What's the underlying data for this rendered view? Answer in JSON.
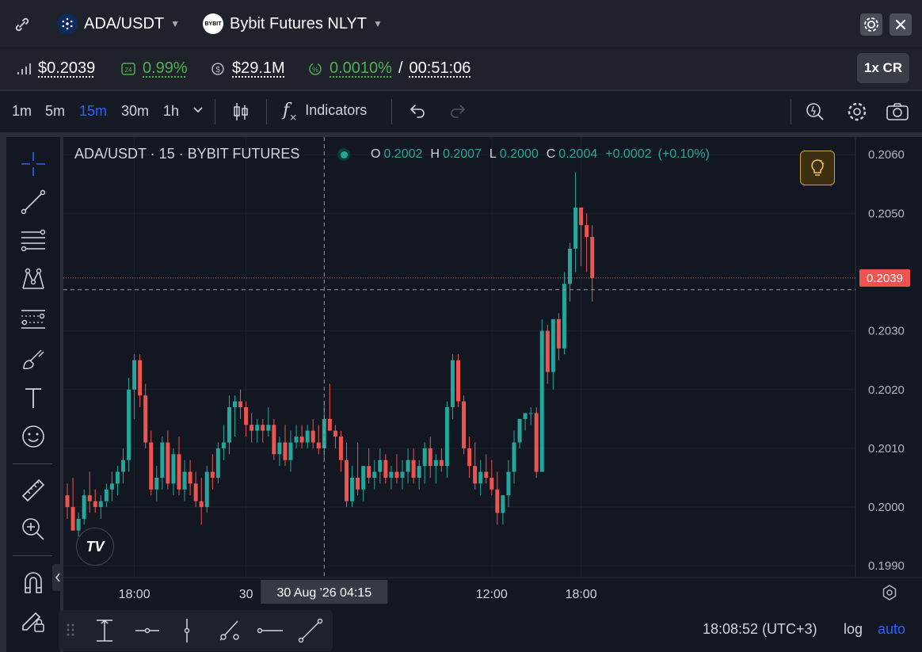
{
  "header": {
    "pair": "ADA/USDT",
    "exchange": "Bybit Futures NLYT",
    "exchange_logo_text": "BYBIT"
  },
  "stats": {
    "price": "$0.2039",
    "change_24h": "0.99%",
    "volume": "$29.1M",
    "funding": "0.0010%",
    "funding_sep": "/",
    "countdown": "00:51:06",
    "leverage_button": "1x CR"
  },
  "toolbar": {
    "timeframes": [
      "1m",
      "5m",
      "15m",
      "30m",
      "1h"
    ],
    "active_timeframe": "15m",
    "indicators_label": "Indicators",
    "indicators_fx": "f"
  },
  "legend": {
    "symbol": "ADA/USDT · 15 · BYBIT FUTURES",
    "o_label": "O",
    "o": "0.2002",
    "h_label": "H",
    "h": "0.2007",
    "l_label": "L",
    "l": "0.2000",
    "c_label": "C",
    "c": "0.2004",
    "change": "+0.0002",
    "change_pct": "(+0.10%)"
  },
  "footer": {
    "time": "18:08:52 (UTC+3)",
    "log": "log",
    "auto": "auto",
    "tv_logo": "TV"
  },
  "colors": {
    "up": "#26a69a",
    "down": "#ef5350",
    "accent": "#2962ff",
    "background": "#131722"
  },
  "chart_data": {
    "type": "candlestick",
    "ylim": [
      0.1988,
      0.2063
    ],
    "yticks": [
      "0.2060",
      "0.2050",
      "0.2030",
      "0.2020",
      "0.2010",
      "0.2000",
      "0.1990"
    ],
    "xlabels": [
      {
        "index": 12,
        "label": "18:00"
      },
      {
        "index": 32,
        "label": "30"
      },
      {
        "index": 76,
        "label": "12:00"
      },
      {
        "index": 92,
        "label": "18:00"
      }
    ],
    "crosshair": {
      "index": 46,
      "label": "30 Aug '26   04:15",
      "price": 0.2037
    },
    "last_price": {
      "value": 0.2039,
      "label": "0.2039"
    },
    "candles": [
      [
        0.2002,
        0.2004,
        0.1998,
        0.2
      ],
      [
        0.2,
        0.2005,
        0.1996,
        0.1996
      ],
      [
        0.1996,
        0.1999,
        0.1995,
        0.1998
      ],
      [
        0.1998,
        0.2003,
        0.1997,
        0.2002
      ],
      [
        0.2002,
        0.2006,
        0.1999,
        0.2001
      ],
      [
        0.2001,
        0.2003,
        0.1999,
        0.2
      ],
      [
        0.2,
        0.2002,
        0.1998,
        0.2001
      ],
      [
        0.2001,
        0.2004,
        0.2,
        0.2003
      ],
      [
        0.2003,
        0.2006,
        0.2001,
        0.2004
      ],
      [
        0.2004,
        0.2007,
        0.2002,
        0.2006
      ],
      [
        0.2006,
        0.201,
        0.2004,
        0.2008
      ],
      [
        0.2008,
        0.2022,
        0.2006,
        0.202
      ],
      [
        0.202,
        0.2026,
        0.2015,
        0.2025
      ],
      [
        0.2025,
        0.2026,
        0.2017,
        0.2019
      ],
      [
        0.2019,
        0.2021,
        0.201,
        0.2011
      ],
      [
        0.2011,
        0.2013,
        0.2002,
        0.2003
      ],
      [
        0.2003,
        0.2007,
        0.2001,
        0.2005
      ],
      [
        0.2005,
        0.2012,
        0.2003,
        0.2011
      ],
      [
        0.2011,
        0.2013,
        0.2003,
        0.2004
      ],
      [
        0.2004,
        0.201,
        0.2002,
        0.2009
      ],
      [
        0.2009,
        0.2012,
        0.2002,
        0.2003
      ],
      [
        0.2003,
        0.2008,
        0.2001,
        0.2006
      ],
      [
        0.2006,
        0.2008,
        0.2002,
        0.2004
      ],
      [
        0.2004,
        0.2006,
        0.2,
        0.2001
      ],
      [
        0.2001,
        0.2005,
        0.1997,
        0.2
      ],
      [
        0.2,
        0.2007,
        0.1999,
        0.2006
      ],
      [
        0.2006,
        0.2009,
        0.2003,
        0.2005
      ],
      [
        0.2005,
        0.2011,
        0.2004,
        0.201
      ],
      [
        0.201,
        0.2014,
        0.2008,
        0.2011
      ],
      [
        0.2011,
        0.2019,
        0.2009,
        0.2017
      ],
      [
        0.2017,
        0.2019,
        0.2012,
        0.2018
      ],
      [
        0.2018,
        0.202,
        0.2015,
        0.2017
      ],
      [
        0.2017,
        0.2018,
        0.2012,
        0.2014
      ],
      [
        0.2014,
        0.2016,
        0.2011,
        0.2013
      ],
      [
        0.2013,
        0.2015,
        0.2011,
        0.2014
      ],
      [
        0.2014,
        0.2015,
        0.2011,
        0.2013
      ],
      [
        0.2013,
        0.2017,
        0.2012,
        0.2014
      ],
      [
        0.2014,
        0.2015,
        0.2008,
        0.2009
      ],
      [
        0.2009,
        0.2012,
        0.2007,
        0.2011
      ],
      [
        0.2011,
        0.2014,
        0.2007,
        0.2008
      ],
      [
        0.2008,
        0.2013,
        0.2006,
        0.2011
      ],
      [
        0.2011,
        0.2014,
        0.201,
        0.2012
      ],
      [
        0.2012,
        0.2014,
        0.201,
        0.2011
      ],
      [
        0.2011,
        0.2014,
        0.201,
        0.2013
      ],
      [
        0.2013,
        0.2015,
        0.201,
        0.2011
      ],
      [
        0.2011,
        0.2014,
        0.2009,
        0.201
      ],
      [
        0.201,
        0.2018,
        0.2008,
        0.2015
      ],
      [
        0.2015,
        0.2021,
        0.2013,
        0.2013
      ],
      [
        0.2013,
        0.2014,
        0.201,
        0.2012
      ],
      [
        0.2012,
        0.2013,
        0.2006,
        0.2008
      ],
      [
        0.2008,
        0.2011,
        0.2,
        0.2001
      ],
      [
        0.2001,
        0.2007,
        0.2,
        0.2005
      ],
      [
        0.2005,
        0.2011,
        0.2002,
        0.2003
      ],
      [
        0.2003,
        0.2007,
        0.2001,
        0.2007
      ],
      [
        0.2007,
        0.201,
        0.2004,
        0.2005
      ],
      [
        0.2005,
        0.2008,
        0.2003,
        0.2006
      ],
      [
        0.2006,
        0.201,
        0.2004,
        0.2008
      ],
      [
        0.2008,
        0.2009,
        0.2004,
        0.2005
      ],
      [
        0.2005,
        0.2007,
        0.2003,
        0.2006
      ],
      [
        0.2006,
        0.2009,
        0.2004,
        0.2005
      ],
      [
        0.2005,
        0.2008,
        0.2003,
        0.2006
      ],
      [
        0.2006,
        0.201,
        0.2004,
        0.2008
      ],
      [
        0.2008,
        0.201,
        0.2004,
        0.2005
      ],
      [
        0.2005,
        0.2008,
        0.2003,
        0.2007
      ],
      [
        0.2007,
        0.2011,
        0.2004,
        0.201
      ],
      [
        0.201,
        0.2012,
        0.2005,
        0.2007
      ],
      [
        0.2007,
        0.2009,
        0.2004,
        0.2008
      ],
      [
        0.2008,
        0.201,
        0.2006,
        0.2007
      ],
      [
        0.2007,
        0.2018,
        0.2005,
        0.2017
      ],
      [
        0.2017,
        0.2026,
        0.2015,
        0.2025
      ],
      [
        0.2025,
        0.2026,
        0.2017,
        0.2018
      ],
      [
        0.2018,
        0.2019,
        0.2009,
        0.201
      ],
      [
        0.201,
        0.2012,
        0.2005,
        0.2007
      ],
      [
        0.2007,
        0.2011,
        0.2003,
        0.2004
      ],
      [
        0.2004,
        0.2008,
        0.2002,
        0.2006
      ],
      [
        0.2006,
        0.2009,
        0.2004,
        0.2005
      ],
      [
        0.2005,
        0.2008,
        0.2002,
        0.2003
      ],
      [
        0.2003,
        0.2006,
        0.1997,
        0.1999
      ],
      [
        0.1999,
        0.2002,
        0.1997,
        0.2002
      ],
      [
        0.2002,
        0.2008,
        0.2,
        0.2006
      ],
      [
        0.2006,
        0.2013,
        0.2004,
        0.2011
      ],
      [
        0.2011,
        0.2015,
        0.201,
        0.2015
      ],
      [
        0.2015,
        0.2016,
        0.2013,
        0.2016
      ],
      [
        0.2016,
        0.2017,
        0.2014,
        0.2016
      ],
      [
        0.2016,
        0.2017,
        0.2005,
        0.2006
      ],
      [
        0.2006,
        0.2032,
        0.2006,
        0.203
      ],
      [
        0.203,
        0.2031,
        0.2021,
        0.2023
      ],
      [
        0.2023,
        0.2032,
        0.202,
        0.2032
      ],
      [
        0.2032,
        0.2033,
        0.2025,
        0.2027
      ],
      [
        0.2027,
        0.204,
        0.2026,
        0.2038
      ],
      [
        0.2038,
        0.2045,
        0.2035,
        0.2044
      ],
      [
        0.2044,
        0.2057,
        0.204,
        0.2051
      ],
      [
        0.2051,
        0.2051,
        0.2041,
        0.2048
      ],
      [
        0.2048,
        0.205,
        0.204,
        0.2046
      ],
      [
        0.2046,
        0.2048,
        0.2035,
        0.2039
      ]
    ]
  }
}
